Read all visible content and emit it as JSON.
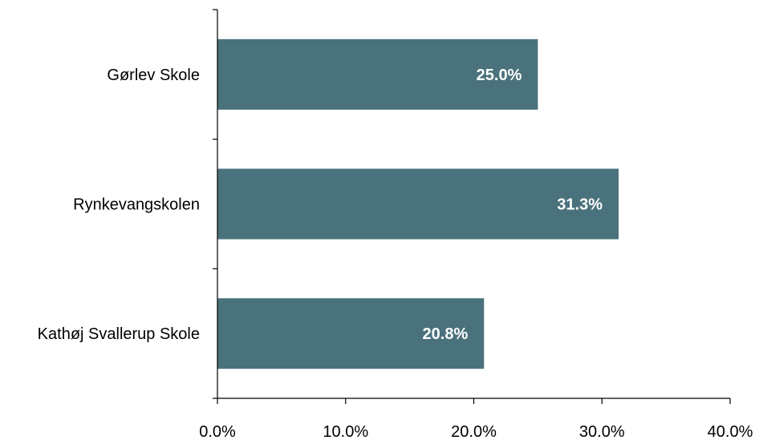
{
  "chart_data": {
    "type": "bar",
    "orientation": "horizontal",
    "title": "",
    "xlabel": "",
    "ylabel": "",
    "categories": [
      "Gørlev Skole",
      "Rynkevangskolen",
      "Kathøj Svallerup Skole"
    ],
    "values": [
      25.0,
      31.3,
      20.8
    ],
    "value_labels": [
      "25.0%",
      "31.3%",
      "20.8%"
    ],
    "xlim": [
      0,
      40
    ],
    "x_ticks": [
      0,
      10,
      20,
      30,
      40
    ],
    "x_tick_labels": [
      "0.0%",
      "10.0%",
      "20.0%",
      "30.0%",
      "40.0%"
    ],
    "bar_color": "#4A727C",
    "label_color": "#FFFFFF",
    "grid": false,
    "legend": "none"
  }
}
